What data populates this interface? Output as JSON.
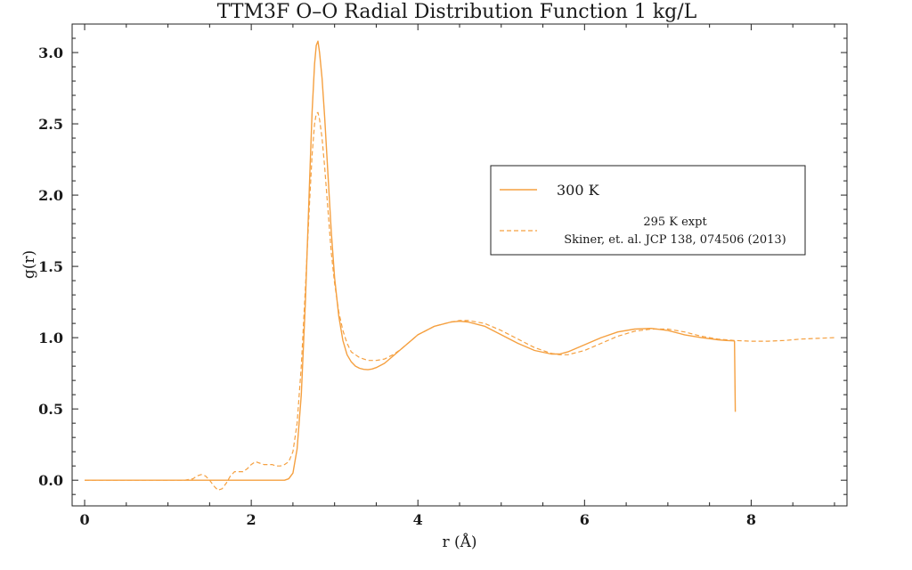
{
  "chart_data": {
    "type": "line",
    "title": "TTM3F O–O Radial Distribution Function 1 kg/L",
    "xlabel": "r (Å)",
    "ylabel": "g(r)",
    "xlim": [
      -0.15,
      9.15
    ],
    "ylim": [
      -0.18,
      3.2
    ],
    "xticks": [
      0,
      2,
      4,
      6,
      8
    ],
    "xtick_labels": [
      "0",
      "2",
      "4",
      "6",
      "8"
    ],
    "yticks": [
      0.0,
      0.5,
      1.0,
      1.5,
      2.0,
      2.5,
      3.0
    ],
    "ytick_labels": [
      "0.0",
      "0.5",
      "1.0",
      "1.5",
      "2.0",
      "2.5",
      "3.0"
    ],
    "grid": false,
    "legend_position": "right",
    "colors": {
      "series": "#f5a040",
      "frame": "#222222"
    },
    "series": [
      {
        "name": "300 K",
        "style": "solid",
        "x": [
          0,
          0.5,
          1.0,
          1.5,
          2.0,
          2.3,
          2.4,
          2.45,
          2.5,
          2.55,
          2.6,
          2.65,
          2.7,
          2.73,
          2.76,
          2.78,
          2.8,
          2.82,
          2.85,
          2.88,
          2.92,
          2.96,
          3.0,
          3.05,
          3.1,
          3.15,
          3.2,
          3.25,
          3.3,
          3.35,
          3.4,
          3.45,
          3.5,
          3.6,
          3.7,
          3.8,
          3.9,
          4.0,
          4.2,
          4.4,
          4.5,
          4.6,
          4.8,
          5.0,
          5.2,
          5.4,
          5.6,
          5.7,
          5.8,
          6.0,
          6.2,
          6.4,
          6.6,
          6.8,
          7.0,
          7.2,
          7.4,
          7.6,
          7.7,
          7.79,
          7.8,
          7.805,
          7.81
        ],
        "y": [
          0,
          0,
          0,
          0,
          0,
          0,
          0,
          0.01,
          0.05,
          0.22,
          0.6,
          1.25,
          2.1,
          2.58,
          2.92,
          3.05,
          3.08,
          3.0,
          2.82,
          2.55,
          2.15,
          1.75,
          1.42,
          1.15,
          0.98,
          0.88,
          0.83,
          0.8,
          0.785,
          0.778,
          0.775,
          0.78,
          0.79,
          0.82,
          0.87,
          0.92,
          0.97,
          1.02,
          1.08,
          1.11,
          1.115,
          1.11,
          1.08,
          1.02,
          0.96,
          0.91,
          0.885,
          0.885,
          0.9,
          0.95,
          1.0,
          1.04,
          1.06,
          1.065,
          1.05,
          1.02,
          1.0,
          0.985,
          0.98,
          0.978,
          0.975,
          0.7,
          0.48
        ]
      },
      {
        "name": "295 K expt\nSkiner, et. al. JCP 138, 074506 (2013)",
        "style": "dashed",
        "x": [
          0,
          0.5,
          1.0,
          1.2,
          1.3,
          1.35,
          1.4,
          1.45,
          1.5,
          1.55,
          1.6,
          1.65,
          1.7,
          1.75,
          1.8,
          1.85,
          1.9,
          1.95,
          2.0,
          2.05,
          2.1,
          2.15,
          2.2,
          2.25,
          2.3,
          2.35,
          2.4,
          2.45,
          2.5,
          2.55,
          2.6,
          2.65,
          2.7,
          2.73,
          2.76,
          2.78,
          2.8,
          2.82,
          2.85,
          2.88,
          2.92,
          2.96,
          3.0,
          3.05,
          3.1,
          3.15,
          3.2,
          3.3,
          3.4,
          3.5,
          3.6,
          3.7,
          3.8,
          3.9,
          4.0,
          4.2,
          4.4,
          4.5,
          4.6,
          4.8,
          5.0,
          5.2,
          5.4,
          5.6,
          5.7,
          5.8,
          6.0,
          6.2,
          6.4,
          6.6,
          6.8,
          7.0,
          7.2,
          7.4,
          7.6,
          7.8,
          8.0,
          8.2,
          8.4,
          8.6,
          8.8,
          9.0
        ],
        "y": [
          0,
          0,
          0,
          0,
          0.01,
          0.03,
          0.04,
          0.03,
          0,
          -0.04,
          -0.07,
          -0.06,
          -0.02,
          0.03,
          0.06,
          0.06,
          0.06,
          0.08,
          0.11,
          0.13,
          0.12,
          0.11,
          0.11,
          0.11,
          0.1,
          0.1,
          0.11,
          0.13,
          0.2,
          0.4,
          0.8,
          1.35,
          1.95,
          2.28,
          2.5,
          2.57,
          2.58,
          2.53,
          2.4,
          2.2,
          1.9,
          1.6,
          1.38,
          1.18,
          1.05,
          0.96,
          0.9,
          0.86,
          0.84,
          0.84,
          0.85,
          0.88,
          0.92,
          0.97,
          1.02,
          1.08,
          1.11,
          1.12,
          1.12,
          1.1,
          1.05,
          0.99,
          0.93,
          0.89,
          0.88,
          0.88,
          0.91,
          0.96,
          1.01,
          1.045,
          1.06,
          1.06,
          1.04,
          1.01,
          0.99,
          0.98,
          0.975,
          0.975,
          0.98,
          0.99,
          0.995,
          1.0
        ]
      }
    ],
    "legend": {
      "entry1": "300 K",
      "entry2_line1": "295 K expt",
      "entry2_line2": "Skiner, et. al. JCP 138, 074506 (2013)"
    }
  }
}
